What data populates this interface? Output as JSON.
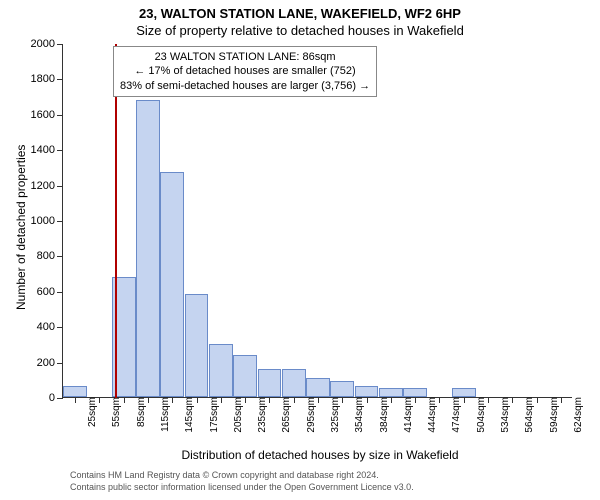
{
  "title": "23, WALTON STATION LANE, WAKEFIELD, WF2 6HP",
  "subtitle": "Size of property relative to detached houses in Wakefield",
  "chart": {
    "type": "histogram",
    "y_axis_title": "Number of detached properties",
    "x_axis_title": "Distribution of detached houses by size in Wakefield",
    "ylim": [
      0,
      2000
    ],
    "ytick_step": 200,
    "yticks": [
      0,
      200,
      400,
      600,
      800,
      1000,
      1200,
      1400,
      1600,
      1800,
      2000
    ],
    "xticks": [
      "25sqm",
      "55sqm",
      "85sqm",
      "115sqm",
      "145sqm",
      "175sqm",
      "205sqm",
      "235sqm",
      "265sqm",
      "295sqm",
      "325sqm",
      "354sqm",
      "384sqm",
      "414sqm",
      "444sqm",
      "474sqm",
      "504sqm",
      "534sqm",
      "564sqm",
      "594sqm",
      "624sqm"
    ],
    "values": [
      60,
      0,
      680,
      1680,
      1270,
      580,
      300,
      240,
      160,
      160,
      110,
      90,
      60,
      50,
      50,
      0,
      50,
      0,
      0,
      0,
      0
    ],
    "bar_color": "#c5d4f0",
    "bar_border_color": "#6a8bc9",
    "background_color": "#ffffff",
    "axis_color": "#333333",
    "marker_position": 86,
    "marker_color": "#b00000"
  },
  "annotation": {
    "line1": "23 WALTON STATION LANE: 86sqm",
    "line2": "← 17% of detached houses are smaller (752)",
    "line3": "83% of semi-detached houses are larger (3,756) →"
  },
  "attribution": {
    "line1": "Contains HM Land Registry data © Crown copyright and database right 2024.",
    "line2": "Contains public sector information licensed under the Open Government Licence v3.0."
  }
}
